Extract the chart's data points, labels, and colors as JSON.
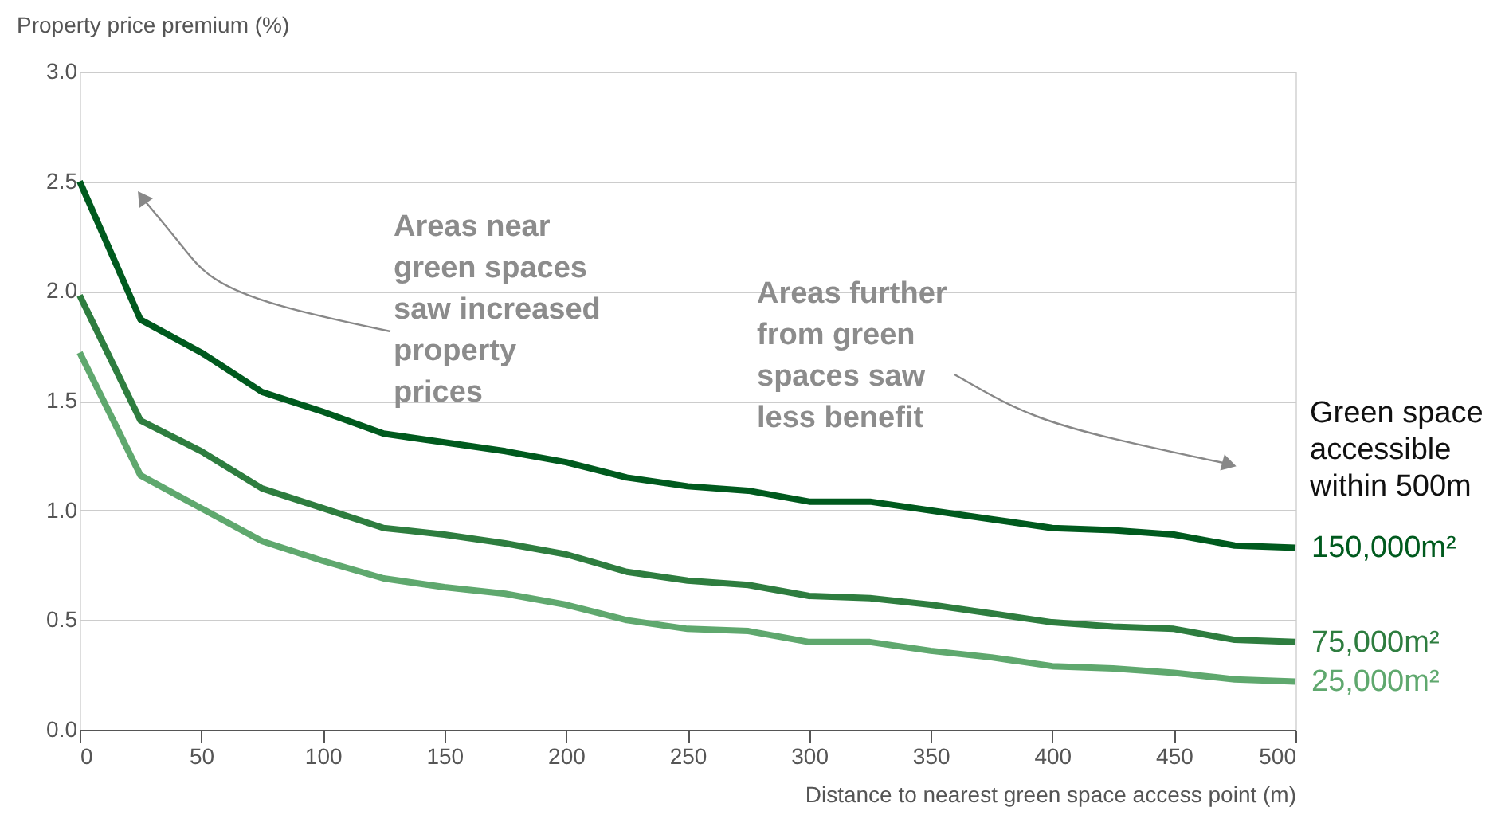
{
  "chart_data": {
    "type": "line",
    "ylabel": "Property price premium (%)",
    "xlabel": "Distance to nearest green space access point (m)",
    "legend_title": "Green space\naccessible\nwithin 500m",
    "annotations": [
      "Areas near\ngreen spaces\nsaw increased\nproperty\nprices",
      "Areas further\nfrom green\nspaces saw\nless benefit"
    ],
    "x": [
      0,
      25,
      50,
      75,
      100,
      125,
      150,
      175,
      200,
      225,
      250,
      275,
      300,
      325,
      350,
      375,
      400,
      425,
      450,
      475,
      500
    ],
    "series": [
      {
        "name": "150,000m²",
        "color": "#005a1e",
        "values": [
          2.5,
          1.87,
          1.72,
          1.54,
          1.45,
          1.35,
          1.31,
          1.27,
          1.22,
          1.15,
          1.11,
          1.09,
          1.04,
          1.04,
          1.0,
          0.96,
          0.92,
          0.91,
          0.89,
          0.84,
          0.83
        ]
      },
      {
        "name": "75,000m²",
        "color": "#2e7d3f",
        "values": [
          1.98,
          1.41,
          1.27,
          1.1,
          1.01,
          0.92,
          0.89,
          0.85,
          0.8,
          0.72,
          0.68,
          0.66,
          0.61,
          0.6,
          0.57,
          0.53,
          0.49,
          0.47,
          0.46,
          0.41,
          0.4
        ]
      },
      {
        "name": "25,000m²",
        "color": "#5fa86e",
        "values": [
          1.72,
          1.16,
          1.01,
          0.86,
          0.77,
          0.69,
          0.65,
          0.62,
          0.57,
          0.5,
          0.46,
          0.45,
          0.4,
          0.4,
          0.36,
          0.33,
          0.29,
          0.28,
          0.26,
          0.23,
          0.22
        ]
      }
    ],
    "xlim": [
      0,
      500
    ],
    "xticks": [
      0,
      50,
      100,
      150,
      200,
      250,
      300,
      350,
      400,
      450,
      500
    ],
    "ylim": [
      0,
      3.0
    ],
    "yticks": [
      {
        "value": 0,
        "label": "0.0"
      },
      {
        "value": 0.5,
        "label": "0.5"
      },
      {
        "value": 1,
        "label": "1.0"
      },
      {
        "value": 1.5,
        "label": "1.5"
      },
      {
        "value": 2,
        "label": "2.0"
      },
      {
        "value": 2.5,
        "label": "2.5"
      },
      {
        "value": 3,
        "label": "3.0"
      }
    ],
    "grid": "y",
    "line_style": "solid"
  }
}
